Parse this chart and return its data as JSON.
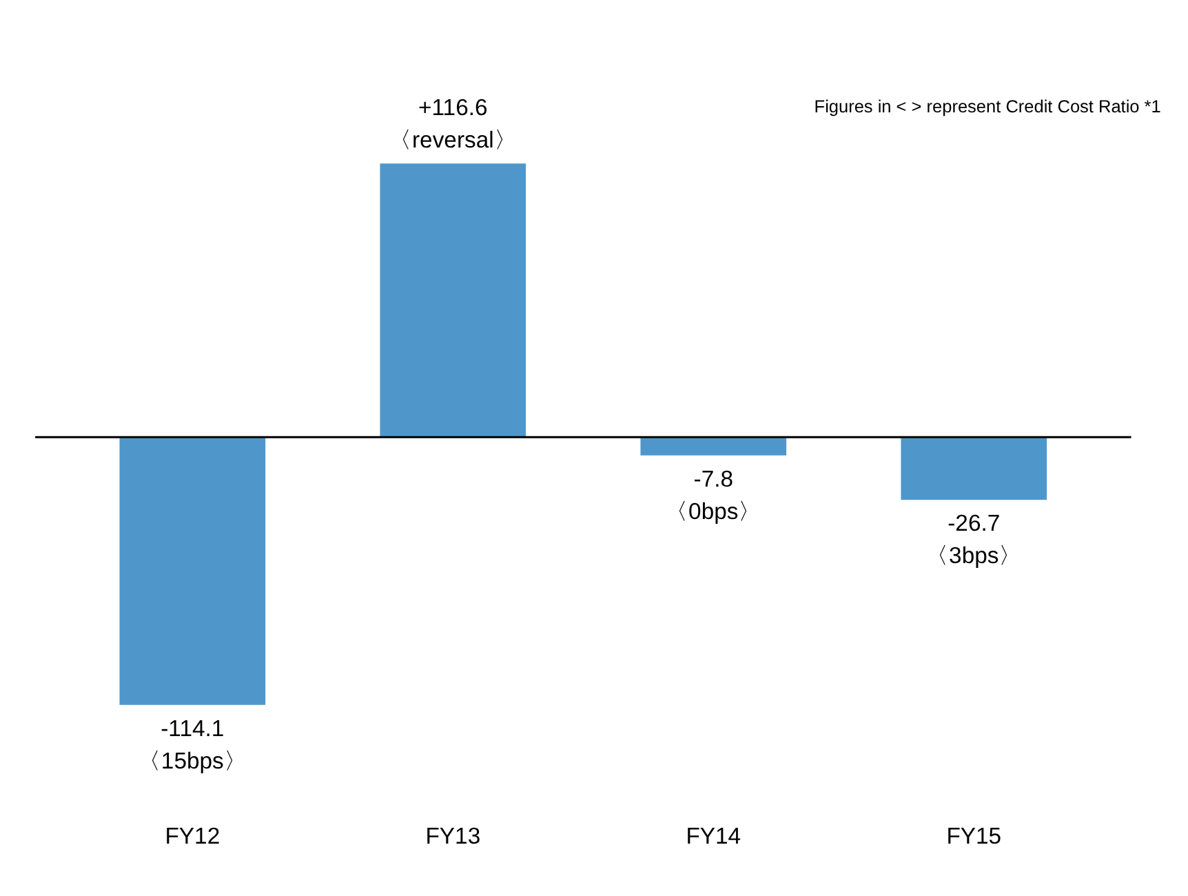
{
  "chart_data": {
    "type": "bar",
    "categories": [
      "FY12",
      "FY13",
      "FY14",
      "FY15"
    ],
    "values": [
      -114.1,
      116.6,
      -7.8,
      -26.7
    ],
    "color": "#4f97cb",
    "data_labels": true,
    "value_labels": [
      "-114.1\n〈15bps〉",
      "+116.6\n〈reversal〉",
      "-7.8\n〈0bps〉",
      "-26.7\n〈3bps〉"
    ],
    "annotations": [
      "Figures in < > represent Credit Cost Ratio *1"
    ],
    "grid": false
  }
}
